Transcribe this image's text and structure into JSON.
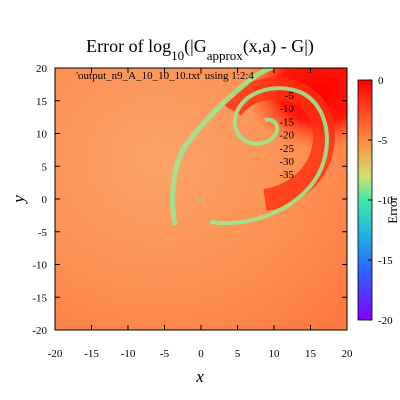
{
  "chart_data": {
    "type": "heatmap",
    "title_parts": [
      "Error of log",
      "10",
      "(|G",
      "approx",
      "(x,a) - G|)"
    ],
    "title_subscripts": [
      1,
      3
    ],
    "xlabel": "x",
    "ylabel": "y",
    "colorbar_label": "Error",
    "key_title": "'output_n9_A_10_10_10.txt' using 1:2:4",
    "contour_levels": [
      -5,
      -10,
      -15,
      -20,
      -25,
      -30,
      -35
    ],
    "xlim": [
      -20,
      20
    ],
    "xticks": [
      -20,
      -15,
      -10,
      -5,
      0,
      5,
      10,
      15,
      20
    ],
    "ylim": [
      -20,
      20
    ],
    "yticks": [
      -20,
      -15,
      -10,
      -5,
      0,
      5,
      10,
      15,
      20
    ],
    "cblim": [
      -20,
      0
    ],
    "cbticks": [
      -20,
      -15,
      -10,
      -5,
      0
    ]
  }
}
